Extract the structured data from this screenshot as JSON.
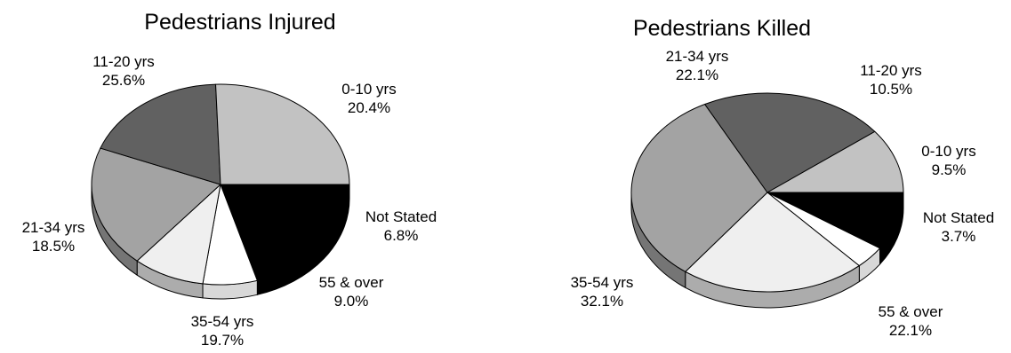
{
  "chart_data": [
    {
      "type": "pie",
      "title": "Pedestrians Injured",
      "slices": [
        {
          "label": "0-10 yrs",
          "value": 20.4,
          "value_label": "20.4%",
          "color": "#000000"
        },
        {
          "label": "Not Stated",
          "value": 6.8,
          "value_label": "6.8%",
          "color": "#ffffff"
        },
        {
          "label": "55 & over",
          "value": 9.0,
          "value_label": "9.0%",
          "color": "#efefef"
        },
        {
          "label": "35-54 yrs",
          "value": 19.7,
          "value_label": "19.7%",
          "color": "#a3a3a3"
        },
        {
          "label": "21-34 yrs",
          "value": 18.5,
          "value_label": "18.5%",
          "color": "#616161"
        },
        {
          "label": "11-20 yrs",
          "value": 25.6,
          "value_label": "25.6%",
          "color": "#c2c2c2"
        }
      ]
    },
    {
      "type": "pie",
      "title": "Pedestrians Killed",
      "slices": [
        {
          "label": "0-10 yrs",
          "value": 9.5,
          "value_label": "9.5%",
          "color": "#000000"
        },
        {
          "label": "Not Stated",
          "value": 3.7,
          "value_label": "3.7%",
          "color": "#ffffff"
        },
        {
          "label": "55 & over",
          "value": 22.1,
          "value_label": "22.1%",
          "color": "#efefef"
        },
        {
          "label": "35-54 yrs",
          "value": 32.1,
          "value_label": "32.1%",
          "color": "#a3a3a3"
        },
        {
          "label": "21-34 yrs",
          "value": 22.1,
          "value_label": "22.1%",
          "color": "#616161"
        },
        {
          "label": "11-20 yrs",
          "value": 10.5,
          "value_label": "10.5%",
          "color": "#c2c2c2"
        }
      ]
    }
  ]
}
